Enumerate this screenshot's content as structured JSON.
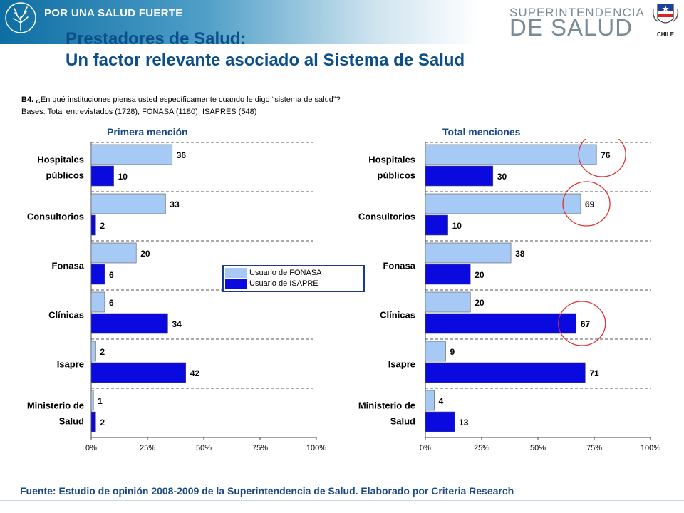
{
  "header": {
    "slogan": "POR UNA SALUD FUERTE",
    "agency_line1": "SUPERINTENDENCIA",
    "agency_line2": "DE SALUD",
    "gov_text": "CHILE"
  },
  "title_line1": "Prestadores de Salud:",
  "title_line2": "Un factor relevante asociado al Sistema de Salud",
  "question_code": "B4.",
  "question_text": "¿En qué instituciones piensa usted específicamente cuando le digo “sistema de salud”?",
  "bases": "Bases: Total entrevistados (1728), FONASA (1180), ISAPRES (548)",
  "source": "Fuente: Estudio de opinión 2008-2009 de la Superintendencia de Salud. Elaborado por Criteria Research",
  "colors": {
    "fonasa": "#a6caf5",
    "isapre": "#0a0ae0",
    "highlight": "#e03030",
    "title": "#0b4e8a"
  },
  "legend": {
    "fonasa": "Usuario de FONASA",
    "isapre": "Usuario de ISAPRE"
  },
  "chart_data": [
    {
      "type": "bar",
      "orientation": "horizontal",
      "title": "Primera mención",
      "categories": [
        "Hospitales públicos",
        "Consultorios",
        "Fonasa",
        "Clínicas",
        "Isapre",
        "Ministerio de Salud"
      ],
      "category_lines": [
        [
          "Hospitales",
          "públicos"
        ],
        [
          "Consultorios"
        ],
        [
          "Fonasa"
        ],
        [
          "Clínicas"
        ],
        [
          "Isapre"
        ],
        [
          "Ministerio de",
          "Salud"
        ]
      ],
      "series": [
        {
          "name": "Usuario de FONASA",
          "values": [
            36,
            33,
            20,
            6,
            2,
            1
          ]
        },
        {
          "name": "Usuario de ISAPRE",
          "values": [
            10,
            2,
            6,
            34,
            42,
            2
          ]
        }
      ],
      "xlim": [
        0,
        100
      ],
      "xticks": [
        "0%",
        "25%",
        "50%",
        "75%",
        "100%"
      ],
      "highlighted": []
    },
    {
      "type": "bar",
      "orientation": "horizontal",
      "title": "Total menciones",
      "categories": [
        "Hospitales públicos",
        "Consultorios",
        "Fonasa",
        "Clínicas",
        "Isapre",
        "Ministerio de Salud"
      ],
      "category_lines": [
        [
          "Hospitales",
          "públicos"
        ],
        [
          "Consultorios"
        ],
        [
          "Fonasa"
        ],
        [
          "Clínicas"
        ],
        [
          "Isapre"
        ],
        [
          "Ministerio de",
          "Salud"
        ]
      ],
      "series": [
        {
          "name": "Usuario de FONASA",
          "values": [
            76,
            69,
            38,
            20,
            9,
            4
          ]
        },
        {
          "name": "Usuario de ISAPRE",
          "values": [
            30,
            10,
            20,
            67,
            71,
            13
          ]
        }
      ],
      "xlim": [
        0,
        100
      ],
      "xticks": [
        "0%",
        "25%",
        "50%",
        "75%",
        "100%"
      ],
      "highlighted": [
        [
          0,
          0
        ],
        [
          1,
          0
        ],
        [
          3,
          1
        ]
      ]
    }
  ]
}
